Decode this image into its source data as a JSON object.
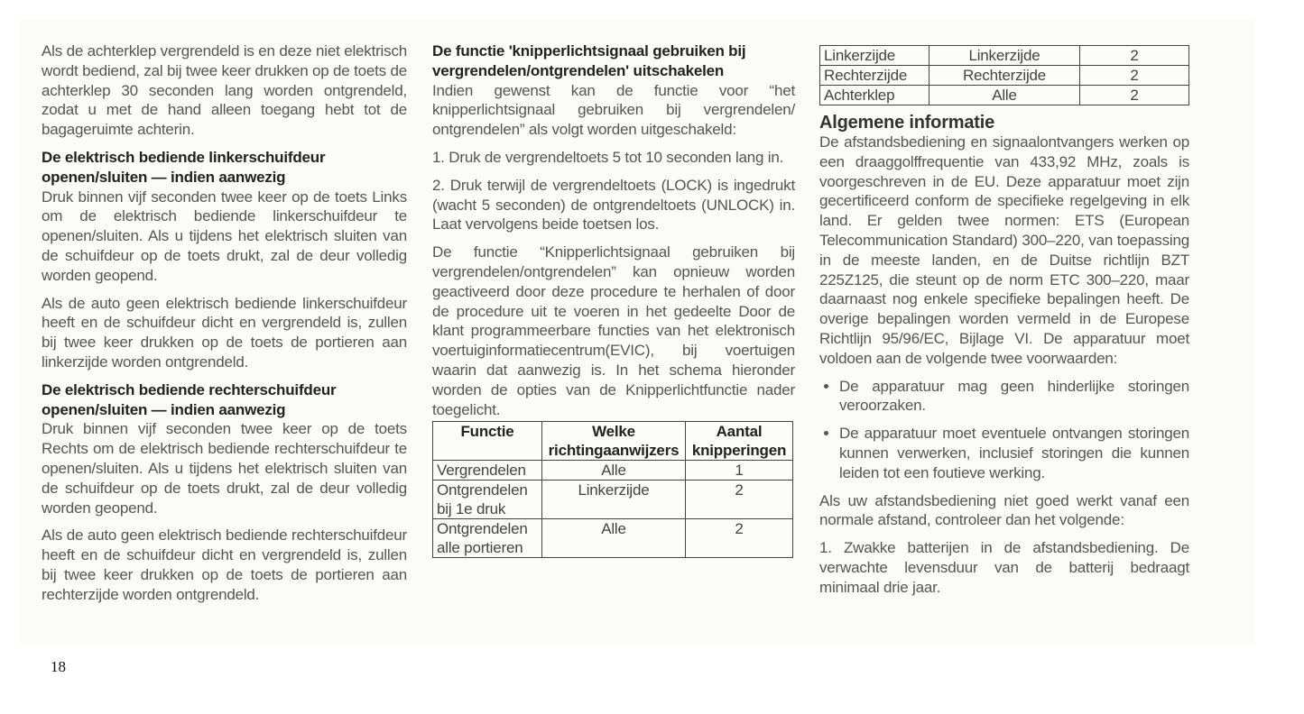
{
  "column1": {
    "p1": "Als de achterklep vergrendeld is en deze niet elektrisch wordt bediend, zal bij twee keer drukken op de toets de achterklep 30 seconden lang worden ontgrendeld, zodat u met de hand alleen toegang hebt tot de bagageruimte achterin.",
    "h1": "De elektrisch bediende linkerschuifdeur openen/sluiten — indien aanwezig",
    "p2": "Druk binnen vijf seconden twee keer op de toets Links om de elektrisch bediende linkerschuifdeur te openen/sluiten. Als u tijdens het elektrisch sluiten van de schuifdeur op de toets drukt, zal de deur volledig worden geopend.",
    "p3": "Als de auto geen elektrisch bediende linkerschuifdeur heeft en de schuifdeur dicht en vergrendeld is, zullen bij twee keer drukken op de toets de portieren aan linkerzijde worden ontgrendeld.",
    "h2": "De elektrisch bediende rechterschuifdeur openen/sluiten — indien aanwezig",
    "p4": "Druk binnen vijf seconden twee keer op de toets Rechts om de elektrisch bediende rechterschuifdeur te openen/sluiten. Als u tijdens het elektrisch sluiten van de schuifdeur op de toets drukt, zal de deur volledig worden geopend.",
    "p5": "Als de auto geen elektrisch bediende rechterschuifdeur heeft en de schuifdeur dicht en vergrendeld is, zullen bij twee keer drukken op de toets de portieren aan rechterzijde worden ontgrendeld."
  },
  "column2": {
    "h1": "De functie 'knipperlichtsignaal gebruiken bij vergrendelen/ontgrendelen' uitschakelen",
    "p1": "Indien gewenst kan de functie voor “het knipperlichtsignaal gebruiken bij vergrendelen/ ontgrendelen” als volgt worden uitgeschakeld:",
    "p2": "1. Druk de vergrendeltoets 5 tot 10 seconden lang in.",
    "p3": "2. Druk terwijl de vergrendeltoets (LOCK) is ingedrukt (wacht 5 seconden) de ontgrendeltoets (UNLOCK) in. Laat vervolgens beide toetsen los.",
    "p4": "De functie “Knipperlichtsignaal gebruiken bij vergrendelen/ontgrendelen” kan opnieuw worden geactiveerd door deze procedure te herhalen of door de procedure uit te voeren in het gedeelte Door de klant programmeerbare functies van het elektronisch voertuiginformatiecentrum(EVIC), bij voertuigen waarin dat aanwezig is. In het schema hieronder worden de opties van de Knipperlichtfunctie nader toegelicht.",
    "table": {
      "headers": [
        "Functie",
        "Welke richtingaanwijzers",
        "Aantal knipperingen"
      ],
      "rows": [
        [
          "Vergrendelen",
          "Alle",
          "1"
        ],
        [
          "Ontgrendelen bij 1e druk",
          "Linkerzijde",
          "2"
        ],
        [
          "Ontgrendelen alle portieren",
          "Alle",
          "2"
        ]
      ]
    }
  },
  "column3": {
    "table_rows": [
      [
        "Linkerzijde",
        "Linkerzijde",
        "2"
      ],
      [
        "Rechterzijde",
        "Rechterzijde",
        "2"
      ],
      [
        "Achterklep",
        "Alle",
        "2"
      ]
    ],
    "h1": "Algemene informatie",
    "p1": "De afstandsbediening en signaalontvangers werken op een draaggolffrequentie van 433,92 MHz, zoals is voorgeschreven in de EU. Deze apparatuur moet zijn gecertificeerd conform de specifieke regelgeving in elk land. Er gelden twee normen: ETS (European Telecommunication Standard) 300–220, van toepassing in de meeste landen, en de Duitse richtlijn BZT 225Z125, die steunt op de norm ETC 300–220, maar daarnaast nog enkele specifieke bepalingen heeft. De overige bepalingen worden vermeld in de Europese Richtlijn 95/96/EC, Bijlage VI. De apparatuur moet voldoen aan de volgende twee voorwaarden:",
    "bullets": [
      "De apparatuur mag geen hinderlijke storingen veroorzaken.",
      "De apparatuur moet eventuele ontvangen storingen kunnen verwerken, inclusief storingen die kunnen leiden tot een foutieve werking."
    ],
    "p2": "Als uw afstandsbediening niet goed werkt vanaf een normale afstand, controleer dan het volgende:",
    "p3": "1. Zwakke batterijen in de afstandsbediening. De verwachte levensduur van de batterij bedraagt minimaal drie jaar."
  },
  "page_number": "18"
}
